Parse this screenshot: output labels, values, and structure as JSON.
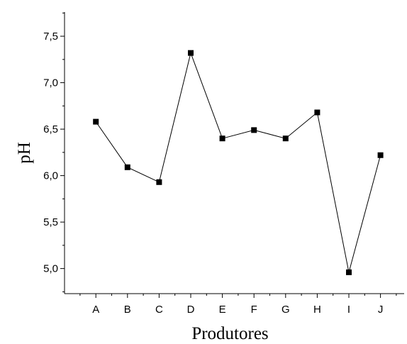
{
  "chart_data": {
    "type": "line",
    "title": "",
    "xlabel": "Produtores",
    "ylabel": "pH",
    "categories": [
      "A",
      "B",
      "C",
      "D",
      "E",
      "F",
      "G",
      "H",
      "I",
      "J"
    ],
    "series": [
      {
        "values": [
          6.58,
          6.09,
          5.93,
          7.32,
          6.4,
          6.49,
          6.4,
          6.68,
          4.96,
          6.22
        ]
      }
    ],
    "ylim": [
      4.73,
      7.76
    ],
    "yticks": [
      "5,0",
      "5,5",
      "6,0",
      "6,5",
      "7,0",
      "7,5"
    ],
    "ytick_values": [
      5.0,
      5.5,
      6.0,
      6.5,
      7.0,
      7.5
    ],
    "grid": false,
    "legend": "none",
    "marker": "square",
    "color": "#000000"
  }
}
